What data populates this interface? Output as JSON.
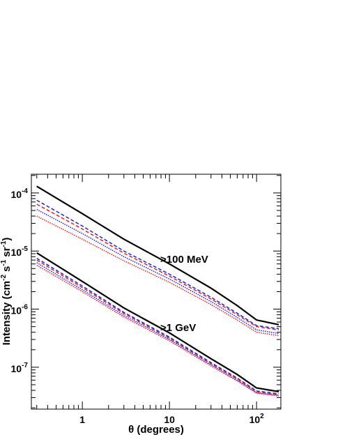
{
  "chart_data": {
    "type": "line",
    "xlabel": "θ (degrees)",
    "ylabel": [
      "Intensity (cm",
      "-2",
      "s",
      "-1",
      "sr",
      "-1",
      ")"
    ],
    "log_x": true,
    "log_y": true,
    "xlim": [
      0.26,
      190
    ],
    "ylim": [
      1.9e-08,
      0.00021
    ],
    "xticks": [
      1,
      10,
      {
        "value": 100,
        "label": "10",
        "exponent": "2"
      }
    ],
    "yticks": [
      {
        "value": 0.0001,
        "label": "10",
        "exponent": "-4"
      },
      {
        "value": 1e-05,
        "label": "10",
        "exponent": "-5"
      },
      {
        "value": 1e-06,
        "label": "10",
        "exponent": "-6"
      },
      {
        "value": 1e-07,
        "label": "10",
        "exponent": "-7"
      }
    ],
    "x": [
      0.3,
      1,
      3,
      10,
      30,
      60,
      100,
      180
    ],
    "series": [
      {
        "color": "#000000",
        "style": "solid",
        "values": [
          0.00013,
          4.4e-05,
          1.6e-05,
          6e-06,
          2.3e-06,
          1.15e-06,
          6.5e-07,
          5.4e-07
        ]
      },
      {
        "color": "#2020e0",
        "style": "dashed",
        "values": [
          7.5e-05,
          2.7e-05,
          1e-05,
          4e-06,
          1.6e-06,
          8.5e-07,
          5.2e-07,
          4.6e-07
        ]
      },
      {
        "color": "#e02020",
        "style": "dashed",
        "values": [
          6.4e-05,
          2.4e-05,
          9.2e-06,
          3.7e-06,
          1.5e-06,
          8e-07,
          5e-07,
          4.4e-07
        ]
      },
      {
        "color": "#2020e0",
        "style": "dotted",
        "values": [
          5.2e-05,
          2e-05,
          8e-06,
          3.3e-06,
          1.35e-06,
          7.2e-07,
          4.4e-07,
          3.8e-07
        ]
      },
      {
        "color": "#e02020",
        "style": "dotted",
        "values": [
          4e-05,
          1.6e-05,
          6.8e-06,
          2.9e-06,
          1.2e-06,
          6.5e-07,
          4e-07,
          3.5e-07
        ]
      },
      {
        "color": "#000000",
        "style": "solid",
        "values": [
          9.3e-06,
          3e-06,
          1.05e-06,
          3.9e-07,
          1.4e-07,
          7.5e-08,
          4.4e-08,
          3.8e-08
        ]
      },
      {
        "color": "#2020e0",
        "style": "dashed",
        "values": [
          7.5e-06,
          2.5e-06,
          8.8e-07,
          3.3e-07,
          1.2e-07,
          6.5e-08,
          3.9e-08,
          3.5e-08
        ]
      },
      {
        "color": "#e02020",
        "style": "dashed",
        "values": [
          7e-06,
          2.35e-06,
          8.4e-07,
          3.15e-07,
          1.15e-07,
          6.3e-08,
          3.8e-08,
          3.4e-08
        ]
      },
      {
        "color": "#2020e0",
        "style": "dotted",
        "values": [
          6.3e-06,
          2.15e-06,
          7.8e-07,
          3e-07,
          1.1e-07,
          6e-08,
          3.65e-08,
          3.3e-08
        ]
      },
      {
        "color": "#e02020",
        "style": "dotted",
        "values": [
          5.7e-06,
          2e-06,
          7.3e-07,
          2.85e-07,
          1.05e-07,
          5.8e-08,
          3.55e-08,
          3.2e-08
        ]
      }
    ],
    "annotations": [
      ">100 MeV",
      ">1 GeV"
    ]
  }
}
